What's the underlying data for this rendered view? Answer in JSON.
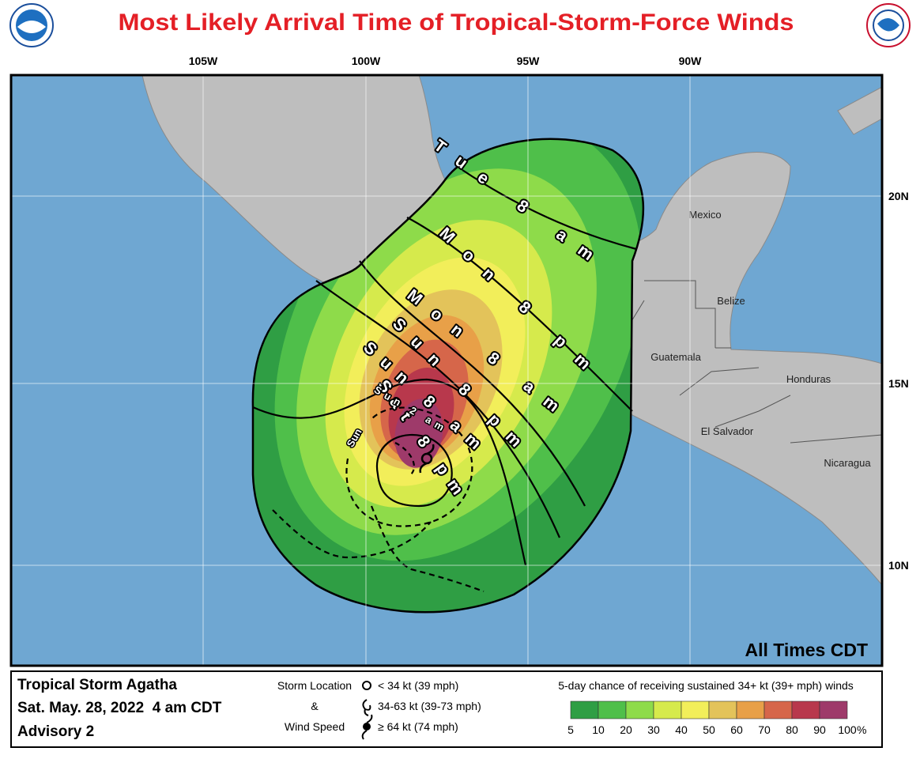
{
  "header": {
    "title": "Most Likely Arrival Time of Tropical-Storm-Force Winds"
  },
  "map": {
    "longitude_labels": [
      "105W",
      "100W",
      "95W",
      "90W"
    ],
    "latitude_labels": [
      "20N",
      "15N",
      "10N"
    ],
    "places": [
      "Mexico",
      "Belize",
      "Guatemala",
      "Honduras",
      "El Salvador",
      "Nicaragua"
    ],
    "arrival_times": [
      "Tue 8 am",
      "Mon 8 pm",
      "Mon 8 am",
      "Sun 8 pm",
      "Sun 8 am",
      "Sat 8 pm",
      "Sun 2 am",
      "Sun"
    ],
    "note": "All Times CDT"
  },
  "legend": {
    "storm": "Tropical Storm Agatha",
    "date": "Sat. May. 28, 2022  4 am CDT",
    "advisory": "Advisory 2",
    "location_title": [
      "Storm Location",
      "&",
      "Wind Speed"
    ],
    "location_items": [
      "< 34 kt (39 mph)",
      "34-63 kt (39-73 mph)",
      "≥ 64 kt (74 mph)"
    ],
    "scale_title": "5-day chance of receiving sustained 34+ kt (39+ mph) winds",
    "scale_labels": [
      5,
      10,
      20,
      30,
      40,
      50,
      60,
      70,
      80,
      90,
      100
    ],
    "scale_colors": [
      "#2f9e44",
      "#4fbf4a",
      "#8edb4a",
      "#d6ea4c",
      "#f2ee5a",
      "#e3c35a",
      "#e8a048",
      "#d6664a",
      "#b8384c",
      "#9e3a6a",
      "#9b45c0"
    ],
    "scale_unit": "%"
  }
}
